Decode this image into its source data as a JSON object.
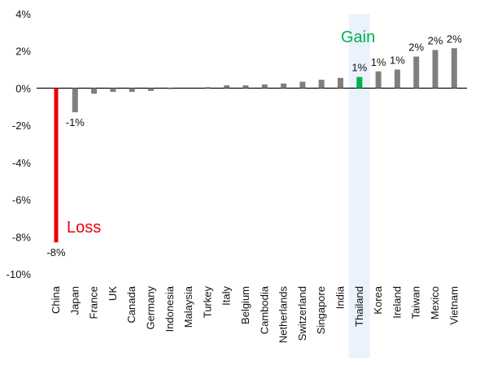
{
  "chart_data": {
    "type": "bar",
    "title": "",
    "xlabel": "",
    "ylabel": "",
    "ylim": [
      -10,
      4
    ],
    "y_ticks": [
      "4%",
      "2%",
      "0%",
      "-2%",
      "-4%",
      "-6%",
      "-8%",
      "-10%"
    ],
    "categories": [
      "China",
      "Japan",
      "France",
      "UK",
      "Canada",
      "Germany",
      "Indonesia",
      "Malaysia",
      "Turkey",
      "Italy",
      "Belgium",
      "Cambodia",
      "Netherlands",
      "Switzerland",
      "Singapore",
      "India",
      "Thailand",
      "Korea",
      "Ireland",
      "Taiwan",
      "Mexico",
      "Vietnam"
    ],
    "values": [
      -8.3,
      -1.3,
      -0.3,
      -0.2,
      -0.2,
      -0.15,
      -0.05,
      0.0,
      0.05,
      0.15,
      0.15,
      0.2,
      0.25,
      0.35,
      0.45,
      0.55,
      0.6,
      0.9,
      1.0,
      1.7,
      2.05,
      2.15
    ],
    "data_labels": {
      "China": "-8%",
      "Japan": "-1%",
      "Thailand": "1%",
      "Korea": "1%",
      "Ireland": "1%",
      "Taiwan": "2%",
      "Mexico": "2%",
      "Vietnam": "2%"
    },
    "highlight_category": "Thailand",
    "annotations": {
      "loss": "Loss",
      "gain": "Gain"
    },
    "grid": false,
    "colors": {
      "default_bar": "#7f7f7f",
      "loss": "#e8000b",
      "loss_label": "#c00000",
      "gain": "#00b050",
      "highlight_band": "#eaf2fb",
      "axis": "#000000"
    }
  }
}
